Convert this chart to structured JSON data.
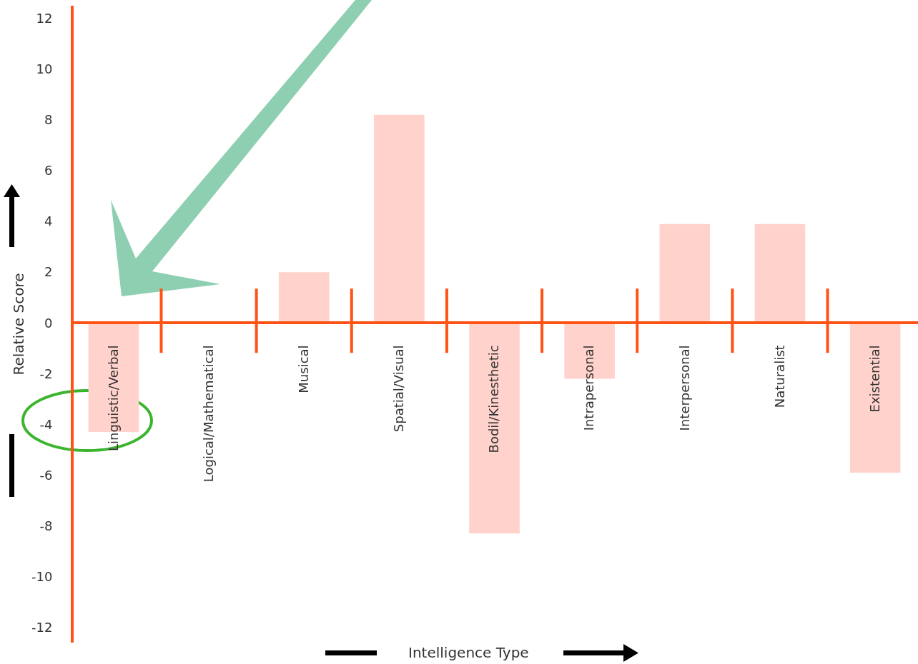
{
  "chart_data": {
    "type": "bar",
    "xlabel": "Intelligence Type",
    "ylabel": "Relative Score",
    "categories": [
      "Linguistic/Verbal",
      "Logical/Mathematical",
      "Musical",
      "Spatial/Visual",
      "Bodil/Kinesthetic",
      "Intrapersonal",
      "Interpersonal",
      "Naturalist",
      "Existential"
    ],
    "values": [
      -4.3,
      0,
      2,
      8.2,
      -8.3,
      -2.2,
      3.9,
      3.9,
      -5.9
    ],
    "color": "#ffd2cc",
    "ylim": [
      -12.6,
      12.5
    ],
    "yticks": [
      -12,
      -10,
      -8,
      -6,
      -4,
      -2,
      0,
      2,
      4,
      6,
      8,
      10,
      12
    ]
  }
}
